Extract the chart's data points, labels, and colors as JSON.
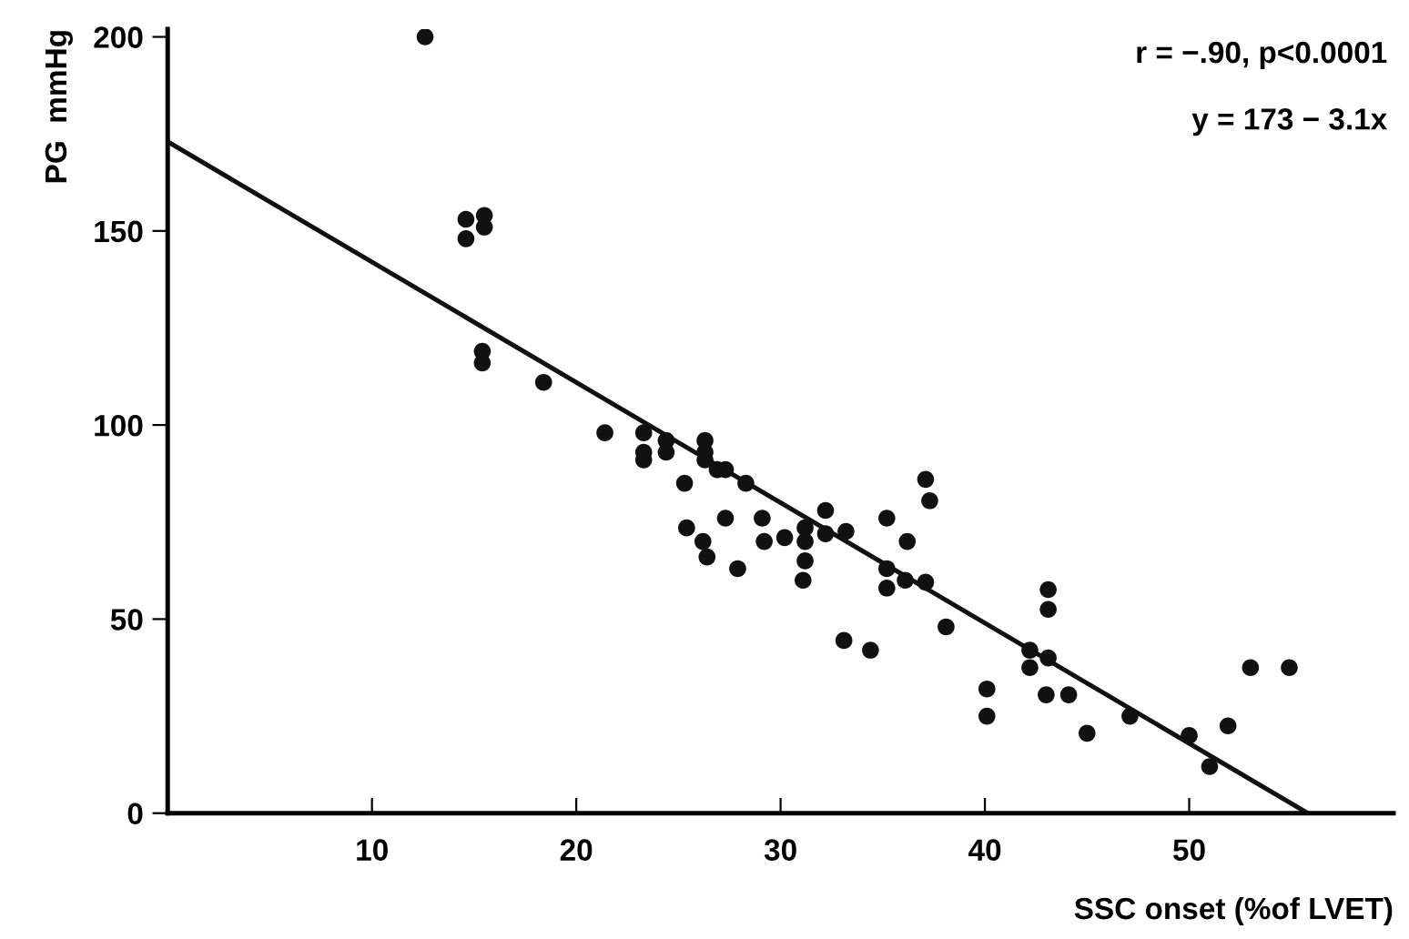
{
  "chart_data": {
    "type": "scatter",
    "xlabel": "SSC onset (%of LVET)",
    "ylabel": "PG  mmHg",
    "annotations": [
      "r = −.90, p<0.0001",
      "y = 173 − 3.1x"
    ],
    "xlim": [
      0,
      60
    ],
    "ylim": [
      0,
      202
    ],
    "xticks": [
      10,
      20,
      30,
      40,
      50
    ],
    "yticks": [
      0,
      50,
      100,
      150,
      200
    ],
    "grid": false,
    "legend": false,
    "series": [
      {
        "color": "#111111",
        "marker": "circle",
        "x": [
          12.6,
          14.6,
          14.6,
          15.5,
          15.5,
          15.4,
          15.4,
          18.4,
          21.4,
          23.3,
          23.3,
          23.3,
          24.4,
          24.4,
          26.3,
          26.3,
          26.3,
          26.9,
          27.3,
          25.3,
          28.3,
          25.4,
          26.2,
          26.4,
          27.3,
          27.9,
          29.1,
          29.2,
          30.2,
          31.2,
          31.2,
          31.2,
          31.1,
          32.2,
          32.2,
          33.2,
          33.1,
          34.4,
          35.2,
          36.2,
          35.2,
          35.2,
          36.1,
          37.1,
          37.3,
          37.1,
          38.1,
          40.1,
          40.1,
          42.2,
          42.2,
          43.1,
          43.1,
          43.1,
          43.0,
          44.1,
          45.0,
          47.1,
          50.0,
          51.0,
          51.9,
          53.0,
          54.9
        ],
        "values": [
          200,
          153,
          148,
          154,
          151,
          119,
          116,
          111,
          98,
          98,
          93,
          91,
          96,
          93,
          96,
          93,
          91,
          88.5,
          88.5,
          85,
          85,
          73.5,
          70,
          66,
          76,
          63,
          76,
          70,
          71,
          73.5,
          70,
          65,
          60,
          78,
          72,
          72.6,
          44.5,
          42,
          76,
          70,
          63,
          58,
          60,
          86,
          80.5,
          59.5,
          48,
          32,
          25,
          42,
          37.5,
          57.6,
          52.5,
          40,
          30.5,
          30.5,
          20.6,
          25,
          20,
          12,
          22.5,
          37.5,
          37.5
        ]
      },
      {
        "type": "line",
        "color": "#111111",
        "marker": "none",
        "line_style": "solid",
        "x": [
          0,
          55.8
        ],
        "values": [
          173,
          0
        ]
      }
    ]
  }
}
